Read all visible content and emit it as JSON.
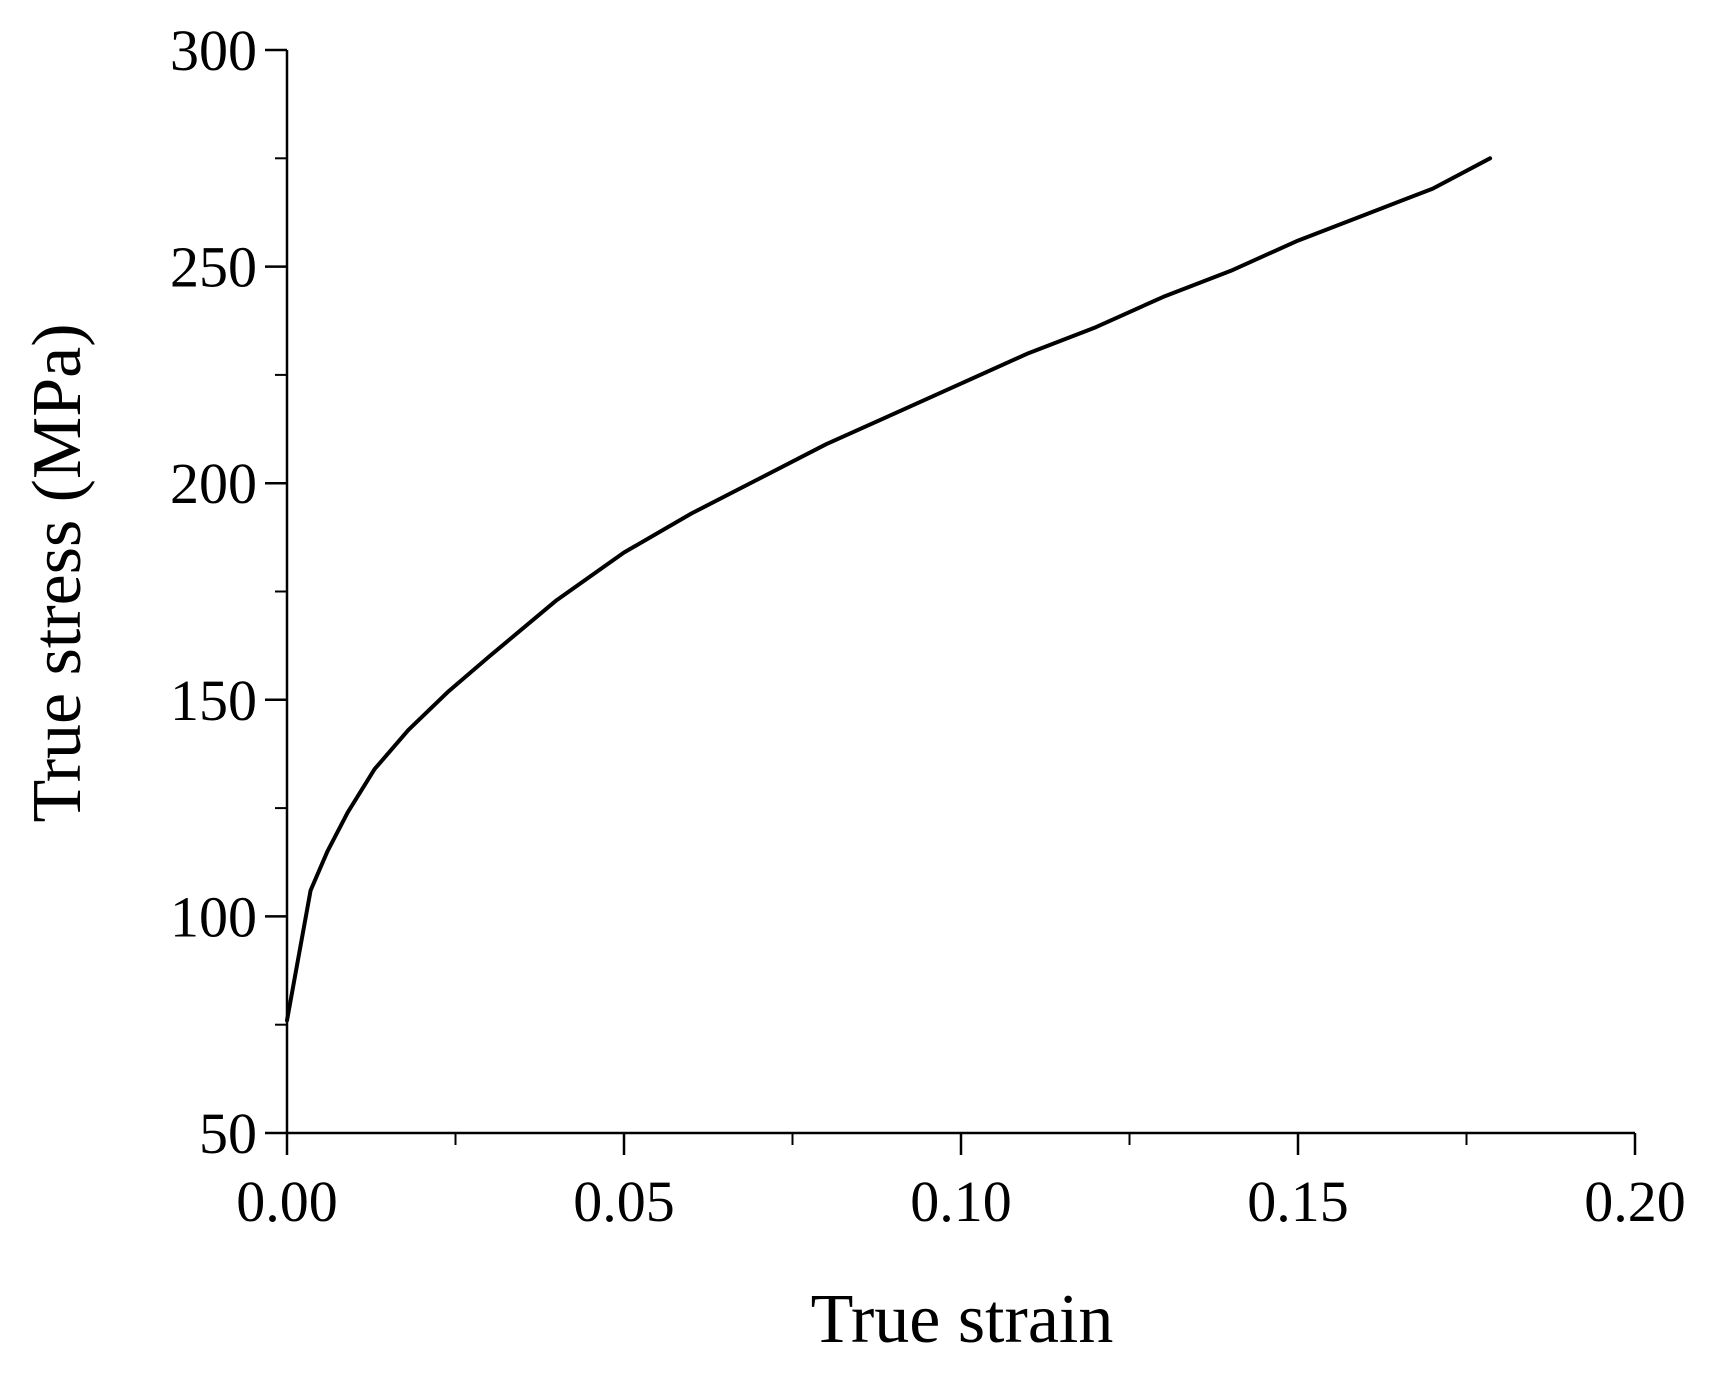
{
  "chart_data": {
    "type": "line",
    "title": "",
    "xlabel": "True strain",
    "ylabel": "True stress (MPa)",
    "xlim": [
      0.0,
      0.2
    ],
    "ylim": [
      50,
      300
    ],
    "x_ticks": [
      0.0,
      0.05,
      0.1,
      0.15,
      0.2
    ],
    "x_tick_labels": [
      "0.00",
      "0.05",
      "0.10",
      "0.15",
      "0.20"
    ],
    "y_ticks": [
      50,
      100,
      150,
      200,
      250,
      300
    ],
    "y_tick_labels": [
      "50",
      "100",
      "150",
      "200",
      "250",
      "300"
    ],
    "grid": false,
    "legend": "none",
    "line_color": "#000000",
    "series": [
      {
        "x": [
          0.0,
          0.0035,
          0.006,
          0.009,
          0.013,
          0.018,
          0.024,
          0.03,
          0.04,
          0.05,
          0.06,
          0.07,
          0.08,
          0.09,
          0.1,
          0.11,
          0.12,
          0.13,
          0.14,
          0.15,
          0.16,
          0.17,
          0.1785
        ],
        "y": [
          76,
          106,
          115,
          124,
          134,
          143,
          152,
          160,
          173,
          184,
          193,
          201,
          209,
          216,
          223,
          230,
          236,
          243,
          249,
          256,
          262,
          268,
          275
        ]
      }
    ]
  }
}
